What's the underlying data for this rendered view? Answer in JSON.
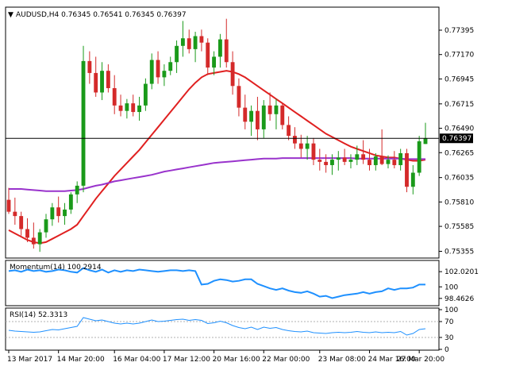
{
  "symbol_header": {
    "triangle_glyph": "▼",
    "text": "AUDUSD,H4  0.76345 0.76541 0.76345 0.76397"
  },
  "current_price_label": "0.76397",
  "momentum_label": "Momentum(14) 100.2914",
  "rsi_label": "RSI(14) 52.3313",
  "chart_data": [
    {
      "type": "candlestick",
      "title": "AUDUSD,H4  0.76345 0.76541 0.76345 0.76397",
      "y_ticks": [
        "0.77395",
        "0.77170",
        "0.76945",
        "0.76715",
        "0.76490",
        "0.76265",
        "0.76035",
        "0.75810",
        "0.75585",
        "0.75355"
      ],
      "ylim": [
        0.753,
        0.776
      ],
      "x_ticks": [
        "13 Mar 2017",
        "14 Mar 20:00",
        "16 Mar 04:00",
        "17 Mar 12:00",
        "20 Mar 16:00",
        "22 Mar 00:00",
        "23 Mar 08:00",
        "24 Mar 16:00",
        "27 Mar 20:00"
      ],
      "current_price": 0.76397,
      "colors": {
        "up": "#1a9a1a",
        "down": "#d42a2a",
        "sma_fast": "#e02020",
        "sma_slow": "#9933cc",
        "price_line": "#000000"
      },
      "candles": [
        [
          0.7583,
          0.7594,
          0.757,
          0.7572
        ],
        [
          0.7572,
          0.7585,
          0.756,
          0.7568
        ],
        [
          0.7568,
          0.7572,
          0.755,
          0.7556
        ],
        [
          0.7556,
          0.7566,
          0.7544,
          0.7548
        ],
        [
          0.7548,
          0.7562,
          0.7538,
          0.7542
        ],
        [
          0.7542,
          0.7556,
          0.7535,
          0.7553
        ],
        [
          0.7553,
          0.757,
          0.7548,
          0.7565
        ],
        [
          0.7565,
          0.758,
          0.7559,
          0.7576
        ],
        [
          0.7576,
          0.7586,
          0.7562,
          0.7568
        ],
        [
          0.7568,
          0.758,
          0.756,
          0.7574
        ],
        [
          0.7574,
          0.759,
          0.757,
          0.7588
        ],
        [
          0.7588,
          0.76,
          0.758,
          0.7596
        ],
        [
          0.7596,
          0.7725,
          0.759,
          0.7711
        ],
        [
          0.7711,
          0.772,
          0.769,
          0.77
        ],
        [
          0.77,
          0.7715,
          0.7678,
          0.7682
        ],
        [
          0.7682,
          0.771,
          0.7675,
          0.7702
        ],
        [
          0.7702,
          0.7708,
          0.7682,
          0.7686
        ],
        [
          0.7686,
          0.7698,
          0.7662,
          0.767
        ],
        [
          0.767,
          0.768,
          0.766,
          0.7665
        ],
        [
          0.7665,
          0.7676,
          0.7658,
          0.7672
        ],
        [
          0.7672,
          0.768,
          0.766,
          0.7664
        ],
        [
          0.7664,
          0.7678,
          0.7656,
          0.767
        ],
        [
          0.767,
          0.7695,
          0.7665,
          0.769
        ],
        [
          0.769,
          0.7718,
          0.7685,
          0.7712
        ],
        [
          0.7712,
          0.772,
          0.769,
          0.7696
        ],
        [
          0.7696,
          0.7708,
          0.7688,
          0.7702
        ],
        [
          0.7702,
          0.7715,
          0.7698,
          0.771
        ],
        [
          0.771,
          0.773,
          0.77,
          0.7725
        ],
        [
          0.7725,
          0.7748,
          0.7715,
          0.7732
        ],
        [
          0.7732,
          0.774,
          0.7718,
          0.7722
        ],
        [
          0.7722,
          0.7738,
          0.771,
          0.7734
        ],
        [
          0.7734,
          0.774,
          0.772,
          0.7728
        ],
        [
          0.7728,
          0.7732,
          0.7698,
          0.7705
        ],
        [
          0.7705,
          0.772,
          0.7698,
          0.7715
        ],
        [
          0.7715,
          0.7736,
          0.7705,
          0.7731
        ],
        [
          0.7731,
          0.775,
          0.7705,
          0.771
        ],
        [
          0.771,
          0.772,
          0.768,
          0.7688
        ],
        [
          0.7688,
          0.7695,
          0.766,
          0.7668
        ],
        [
          0.7668,
          0.768,
          0.7648,
          0.7655
        ],
        [
          0.7655,
          0.767,
          0.7642,
          0.7665
        ],
        [
          0.7665,
          0.7678,
          0.7638,
          0.7648
        ],
        [
          0.7648,
          0.7675,
          0.764,
          0.767
        ],
        [
          0.767,
          0.7682,
          0.7656,
          0.7662
        ],
        [
          0.7662,
          0.7676,
          0.7648,
          0.767
        ],
        [
          0.767,
          0.7672,
          0.7648,
          0.7652
        ],
        [
          0.7652,
          0.766,
          0.7638,
          0.7642
        ],
        [
          0.7642,
          0.765,
          0.763,
          0.7635
        ],
        [
          0.7635,
          0.7643,
          0.7622,
          0.763
        ],
        [
          0.763,
          0.7642,
          0.762,
          0.7635
        ],
        [
          0.7635,
          0.764,
          0.7615,
          0.762
        ],
        [
          0.762,
          0.763,
          0.761,
          0.7618
        ],
        [
          0.7618,
          0.7625,
          0.7608,
          0.7615
        ],
        [
          0.7615,
          0.7625,
          0.7606,
          0.762
        ],
        [
          0.762,
          0.7628,
          0.761,
          0.7622
        ],
        [
          0.7622,
          0.763,
          0.7615,
          0.7618
        ],
        [
          0.7618,
          0.7625,
          0.7612,
          0.762
        ],
        [
          0.762,
          0.7633,
          0.7615,
          0.7625
        ],
        [
          0.7625,
          0.7638,
          0.7616,
          0.762
        ],
        [
          0.762,
          0.763,
          0.761,
          0.7615
        ],
        [
          0.7615,
          0.7626,
          0.761,
          0.7623
        ],
        [
          0.7623,
          0.7648,
          0.7615,
          0.7616
        ],
        [
          0.7616,
          0.7624,
          0.7612,
          0.762
        ],
        [
          0.762,
          0.7628,
          0.7612,
          0.7615
        ],
        [
          0.7615,
          0.763,
          0.761,
          0.7626
        ],
        [
          0.7626,
          0.763,
          0.759,
          0.7595
        ],
        [
          0.7595,
          0.7615,
          0.7588,
          0.7608
        ],
        [
          0.7608,
          0.7642,
          0.7605,
          0.7637
        ],
        [
          0.76345,
          0.76541,
          0.76345,
          0.76397
        ]
      ],
      "series": [
        {
          "values": [
            0.7555,
            0.7552,
            0.7549,
            0.7546,
            0.7544,
            0.7543,
            0.7544,
            0.7547,
            0.755,
            0.7553,
            0.7556,
            0.756,
            0.7568,
            0.7576,
            0.7584,
            0.7591,
            0.7598,
            0.7605,
            0.7611,
            0.7617,
            0.7623,
            0.7629,
            0.7636,
            0.7643,
            0.765,
            0.7657,
            0.7664,
            0.7671,
            0.7678,
            0.7685,
            0.7691,
            0.7696,
            0.7699,
            0.77,
            0.7701,
            0.7702,
            0.7701,
            0.7699,
            0.7696,
            0.7692,
            0.7688,
            0.7684,
            0.768,
            0.7676,
            0.7672,
            0.7668,
            0.7664,
            0.766,
            0.7656,
            0.7652,
            0.7648,
            0.7644,
            0.7641,
            0.7638,
            0.7635,
            0.7632,
            0.763,
            0.7628,
            0.7626,
            0.7624,
            0.7623,
            0.7622,
            0.7622,
            0.7621,
            0.762,
            0.7619,
            0.7619,
            0.762
          ]
        },
        {
          "values": [
            0.7593,
            0.7593,
            0.7593,
            0.75925,
            0.7592,
            0.75915,
            0.7591,
            0.7591,
            0.7591,
            0.7591,
            0.75915,
            0.7592,
            0.7593,
            0.75945,
            0.7596,
            0.7597,
            0.75985,
            0.76,
            0.7601,
            0.7602,
            0.7603,
            0.7604,
            0.7605,
            0.7606,
            0.76075,
            0.7609,
            0.761,
            0.7611,
            0.7612,
            0.7613,
            0.7614,
            0.7615,
            0.7616,
            0.7617,
            0.76175,
            0.7618,
            0.76185,
            0.7619,
            0.76195,
            0.762,
            0.76205,
            0.7621,
            0.7621,
            0.7621,
            0.76215,
            0.76215,
            0.76215,
            0.76215,
            0.76215,
            0.76215,
            0.76215,
            0.76215,
            0.76215,
            0.76215,
            0.76215,
            0.76215,
            0.7621,
            0.7621,
            0.7621,
            0.7621,
            0.7621,
            0.7621,
            0.7621,
            0.7621,
            0.76205,
            0.76205,
            0.76205,
            0.76205
          ]
        }
      ]
    },
    {
      "type": "line",
      "title": "Momentum(14) 100.2914",
      "y_ticks": [
        "102.0201",
        "100",
        "98.4626"
      ],
      "ylim": [
        97.6,
        103.3
      ],
      "color": "#1e90ff",
      "values": [
        102.1,
        102.2,
        102.0,
        102.3,
        102.1,
        102.2,
        102.0,
        102.1,
        102.3,
        102.2,
        102.0,
        101.9,
        102.5,
        102.2,
        102.0,
        102.3,
        101.9,
        102.2,
        102.0,
        102.2,
        102.1,
        102.3,
        102.2,
        102.1,
        102.0,
        102.1,
        102.2,
        102.2,
        102.1,
        102.2,
        102.1,
        100.3,
        100.4,
        100.8,
        101.0,
        100.9,
        100.7,
        100.8,
        101.0,
        101.0,
        100.4,
        100.1,
        99.8,
        99.6,
        99.8,
        99.5,
        99.3,
        99.2,
        99.4,
        99.1,
        98.7,
        98.8,
        98.5,
        98.7,
        98.9,
        99.0,
        99.1,
        99.3,
        99.1,
        99.3,
        99.4,
        99.8,
        99.6,
        99.8,
        99.8,
        99.9,
        100.3,
        100.3
      ]
    },
    {
      "type": "line",
      "title": "RSI(14) 52.3313",
      "y_ticks": [
        "100",
        "70",
        "30",
        "0"
      ],
      "ylim": [
        0,
        100
      ],
      "levels": [
        70,
        30
      ],
      "color": "#1e90ff",
      "values": [
        48,
        46,
        45,
        44,
        43,
        44,
        47,
        50,
        49,
        52,
        55,
        58,
        80,
        76,
        72,
        74,
        70,
        66,
        64,
        66,
        64,
        66,
        70,
        74,
        70,
        71,
        73,
        75,
        76,
        73,
        75,
        73,
        65,
        67,
        71,
        67,
        60,
        55,
        52,
        56,
        50,
        56,
        53,
        55,
        50,
        47,
        45,
        44,
        46,
        42,
        41,
        40,
        42,
        43,
        42,
        43,
        45,
        43,
        42,
        44,
        42,
        43,
        42,
        45,
        36,
        40,
        50,
        52
      ]
    }
  ]
}
